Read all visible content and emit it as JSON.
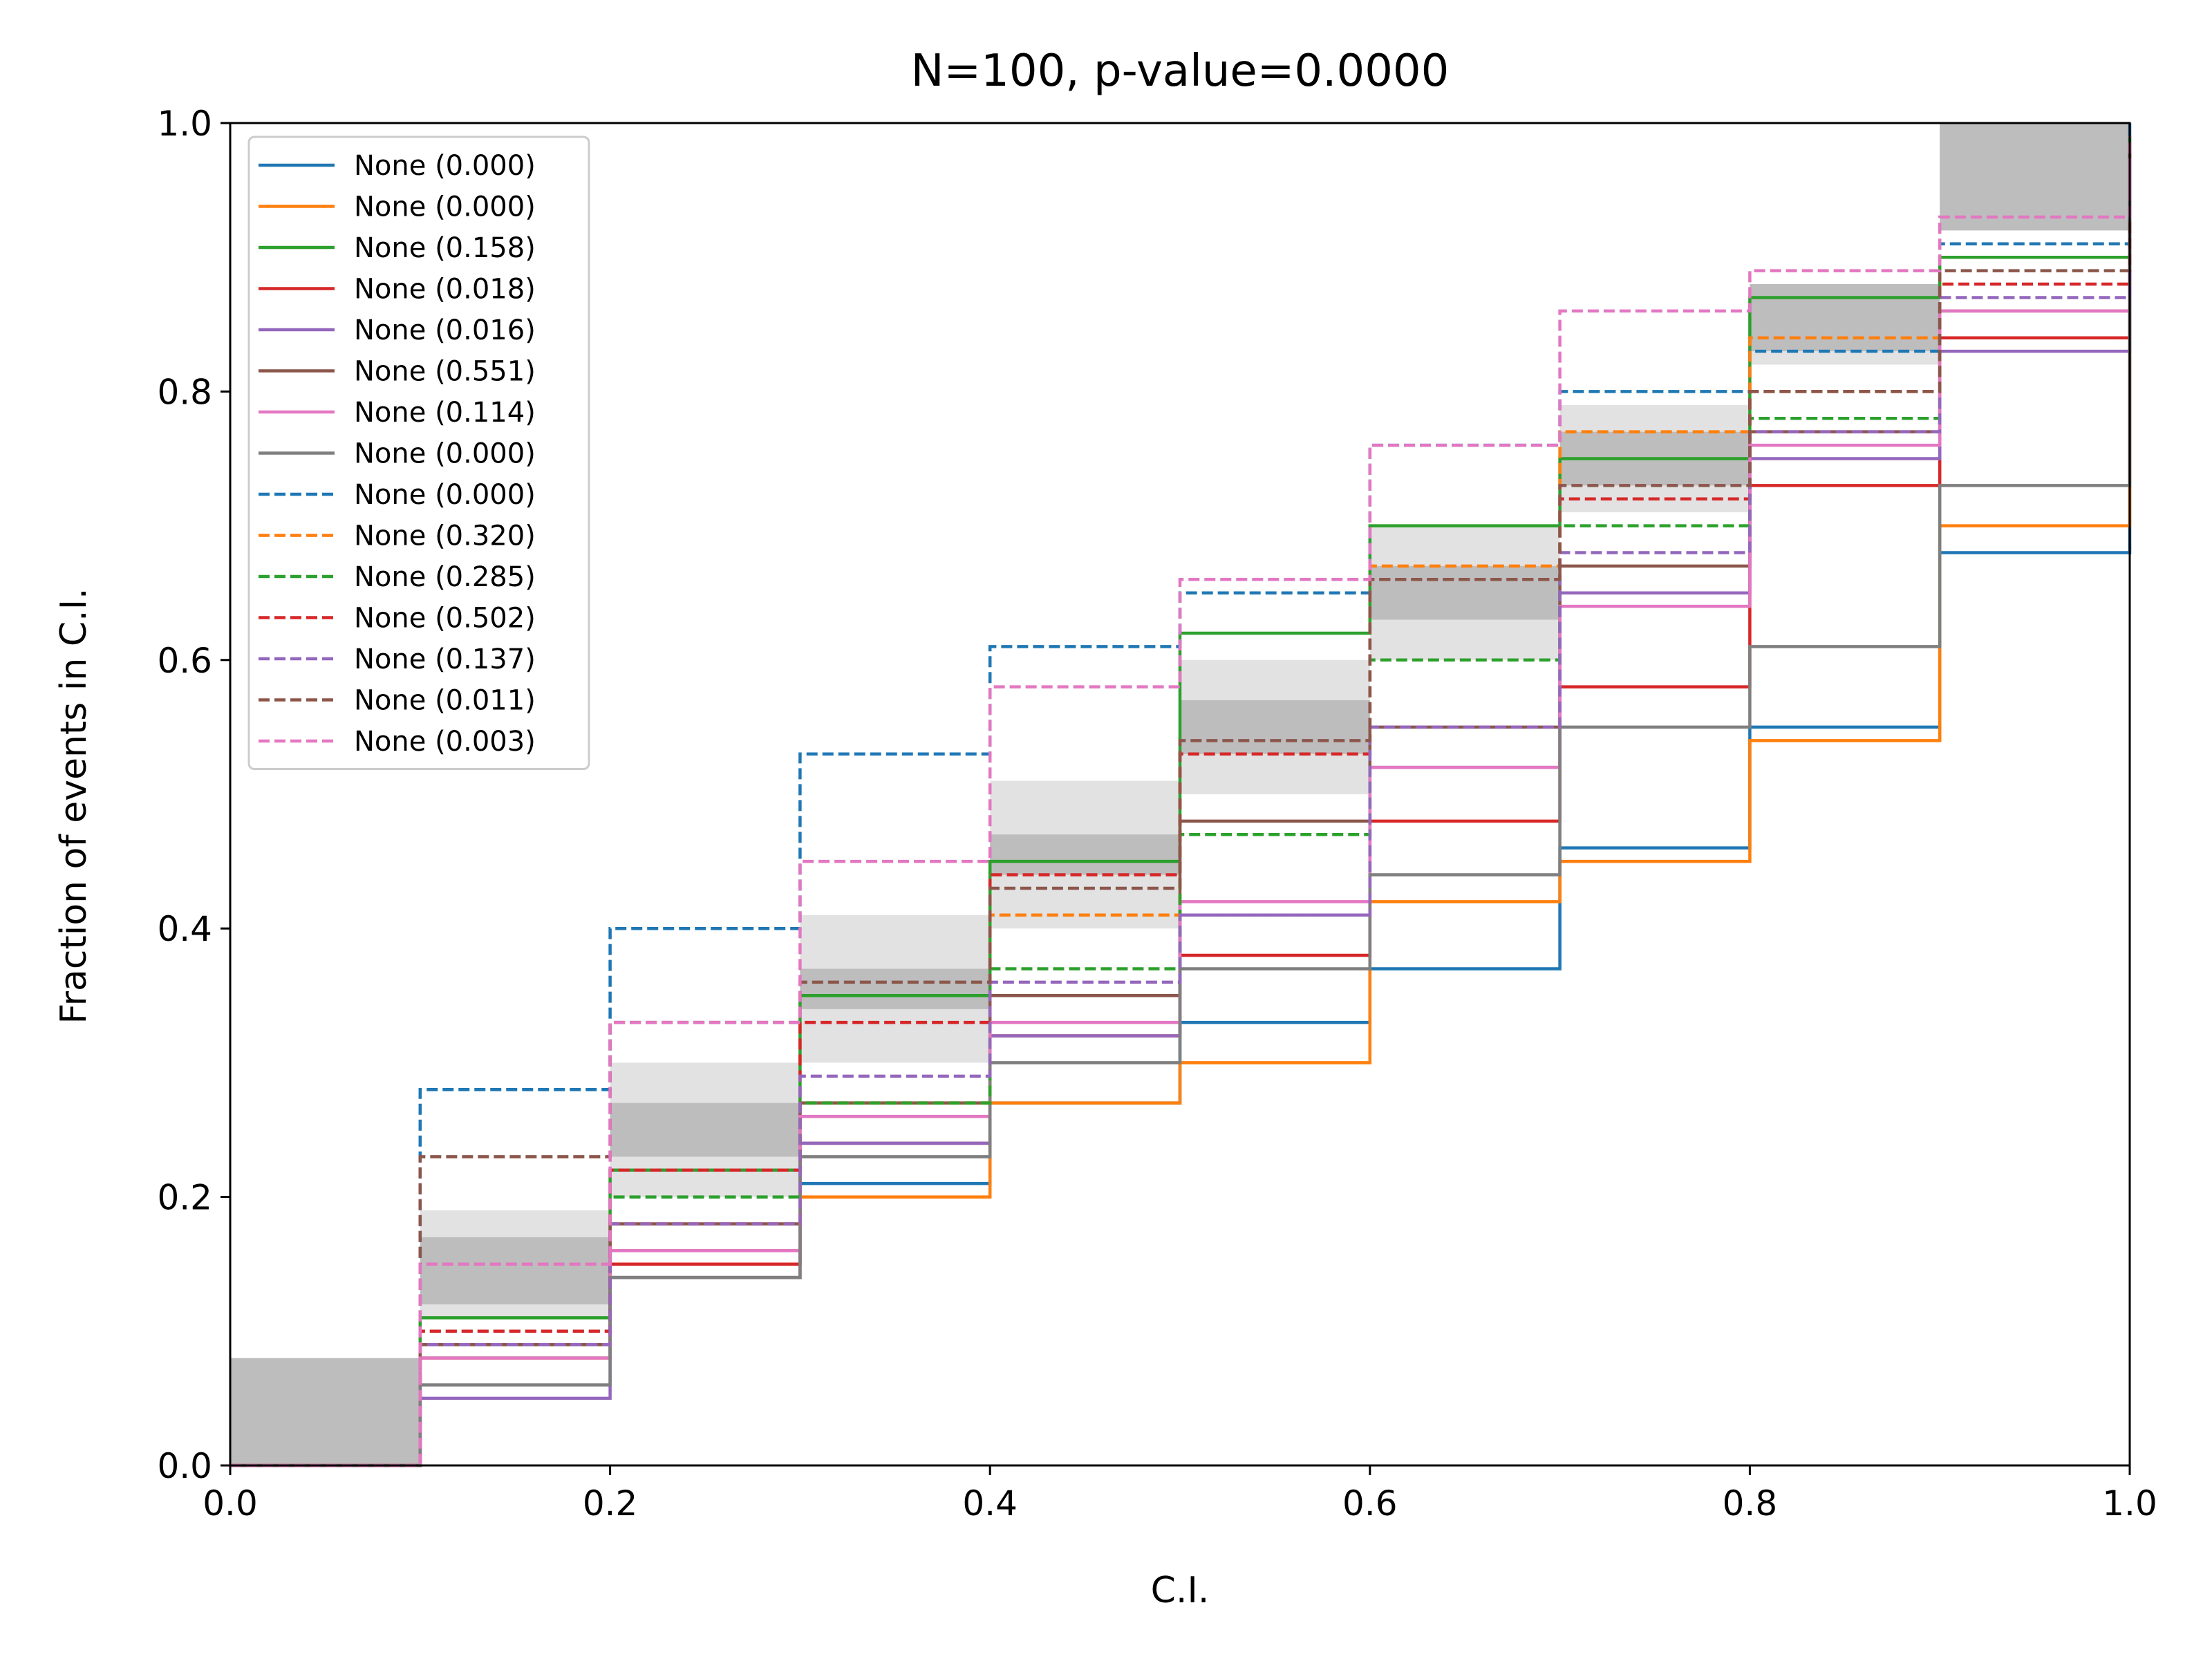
{
  "chart_data": {
    "type": "line",
    "title": "N=100, p-value=0.0000",
    "xlabel": "C.I.",
    "ylabel": "Fraction of events in C.I.",
    "xlim": [
      0,
      1
    ],
    "ylim": [
      0,
      1
    ],
    "x_ticks": [
      "0.0",
      "0.2",
      "0.4",
      "0.6",
      "0.8",
      "1.0"
    ],
    "y_ticks": [
      "0.0",
      "0.2",
      "0.4",
      "0.6",
      "0.8",
      "1.0"
    ],
    "grid": false,
    "legend_position": "upper-left",
    "bands": [
      {
        "label_printed": false,
        "x": [
          0,
          0.1,
          0.2,
          0.3,
          0.4,
          0.5,
          0.6,
          0.7,
          0.8,
          0.9,
          1.0
        ],
        "lower": [
          0,
          0.03,
          0.11,
          0.2,
          0.3,
          0.4,
          0.5,
          0.6,
          0.71,
          0.82,
          1.0
        ],
        "upper": [
          0,
          0.19,
          0.3,
          0.41,
          0.51,
          0.6,
          0.7,
          0.79,
          0.88,
          0.96,
          1.0
        ],
        "color": "#e2e2e2"
      },
      {
        "label_printed": false,
        "x": [
          0,
          0.1,
          0.2,
          0.3,
          0.4,
          0.5,
          0.6,
          0.7,
          0.8,
          0.9,
          1.0
        ],
        "lower": [
          0,
          0.06,
          0.14,
          0.24,
          0.34,
          0.44,
          0.54,
          0.64,
          0.75,
          0.86,
          1.0
        ],
        "upper": [
          0,
          0.15,
          0.26,
          0.37,
          0.47,
          0.56,
          0.66,
          0.76,
          0.85,
          0.94,
          1.0
        ],
        "color": "#d0d0d0"
      },
      {
        "label_printed": false,
        "x": [
          0,
          0.1,
          0.2,
          0.3,
          0.4,
          0.5,
          0.6,
          0.7,
          0.8,
          0.9,
          1.0
        ],
        "lower": [
          0,
          0.08,
          0.17,
          0.27,
          0.37,
          0.47,
          0.57,
          0.67,
          0.77,
          0.88,
          1.0
        ],
        "upper": [
          0,
          0.12,
          0.23,
          0.34,
          0.44,
          0.53,
          0.63,
          0.73,
          0.83,
          0.92,
          1.0
        ],
        "color": "#bdbdbd"
      }
    ],
    "series": [
      {
        "name": "None (0.000)",
        "color": "#1f77b4",
        "dash": "solid",
        "x": [
          0,
          0.1,
          0.2,
          0.3,
          0.4,
          0.5,
          0.6,
          0.7,
          0.8,
          0.9,
          1.0
        ],
        "y": [
          0,
          0.08,
          0.15,
          0.21,
          0.27,
          0.33,
          0.37,
          0.46,
          0.55,
          0.68,
          1.0
        ]
      },
      {
        "name": "None (0.000)",
        "color": "#ff7f0e",
        "dash": "solid",
        "x": [
          0,
          0.1,
          0.2,
          0.3,
          0.4,
          0.5,
          0.6,
          0.7,
          0.8,
          0.9,
          1.0
        ],
        "y": [
          0,
          0.08,
          0.14,
          0.2,
          0.27,
          0.3,
          0.42,
          0.45,
          0.54,
          0.7,
          0.93
        ]
      },
      {
        "name": "None (0.158)",
        "color": "#2ca02c",
        "dash": "solid",
        "x": [
          0,
          0.1,
          0.2,
          0.3,
          0.4,
          0.5,
          0.6,
          0.7,
          0.8,
          0.9,
          1.0
        ],
        "y": [
          0,
          0.11,
          0.22,
          0.35,
          0.45,
          0.62,
          0.7,
          0.75,
          0.87,
          0.9,
          0.99
        ]
      },
      {
        "name": "None (0.018)",
        "color": "#d62728",
        "dash": "solid",
        "x": [
          0,
          0.1,
          0.2,
          0.3,
          0.4,
          0.5,
          0.6,
          0.7,
          0.8,
          0.9,
          1.0
        ],
        "y": [
          0,
          0.09,
          0.15,
          0.24,
          0.32,
          0.38,
          0.48,
          0.58,
          0.73,
          0.84,
          0.98
        ]
      },
      {
        "name": "None (0.016)",
        "color": "#9467bd",
        "dash": "solid",
        "x": [
          0,
          0.1,
          0.2,
          0.3,
          0.4,
          0.5,
          0.6,
          0.7,
          0.8,
          0.9,
          1.0
        ],
        "y": [
          0,
          0.05,
          0.14,
          0.24,
          0.32,
          0.41,
          0.52,
          0.65,
          0.75,
          0.83,
          0.97
        ]
      },
      {
        "name": "None (0.551)",
        "color": "#8c564b",
        "dash": "solid",
        "x": [
          0,
          0.1,
          0.2,
          0.3,
          0.4,
          0.5,
          0.6,
          0.7,
          0.8,
          0.9,
          1.0
        ],
        "y": [
          0,
          0.09,
          0.18,
          0.27,
          0.35,
          0.48,
          0.55,
          0.67,
          0.77,
          0.86,
          0.98
        ]
      },
      {
        "name": "None (0.114)",
        "color": "#e377c2",
        "dash": "solid",
        "x": [
          0,
          0.1,
          0.2,
          0.3,
          0.4,
          0.5,
          0.6,
          0.7,
          0.8,
          0.9,
          1.0
        ],
        "y": [
          0,
          0.08,
          0.16,
          0.26,
          0.33,
          0.42,
          0.52,
          0.64,
          0.76,
          0.86,
          0.97
        ]
      },
      {
        "name": "None (0.000)",
        "color": "#7f7f7f",
        "dash": "solid",
        "x": [
          0,
          0.1,
          0.2,
          0.3,
          0.4,
          0.5,
          0.6,
          0.7,
          0.8,
          0.9,
          1.0
        ],
        "y": [
          0,
          0.06,
          0.14,
          0.23,
          0.3,
          0.37,
          0.44,
          0.55,
          0.61,
          0.73,
          0.95
        ]
      },
      {
        "name": "None (0.000)",
        "color": "#1f77b4",
        "dash": "dashed",
        "x": [
          0,
          0.1,
          0.2,
          0.3,
          0.4,
          0.5,
          0.6,
          0.7,
          0.8,
          0.9,
          1.0
        ],
        "y": [
          0,
          0.28,
          0.4,
          0.53,
          0.61,
          0.65,
          0.76,
          0.8,
          0.83,
          0.91,
          0.99
        ]
      },
      {
        "name": "None (0.320)",
        "color": "#ff7f0e",
        "dash": "dashed",
        "x": [
          0,
          0.1,
          0.2,
          0.3,
          0.4,
          0.5,
          0.6,
          0.7,
          0.8,
          0.9,
          1.0
        ],
        "y": [
          0,
          0.09,
          0.18,
          0.27,
          0.41,
          0.53,
          0.67,
          0.77,
          0.84,
          0.9,
          0.99
        ]
      },
      {
        "name": "None (0.285)",
        "color": "#2ca02c",
        "dash": "dashed",
        "x": [
          0,
          0.1,
          0.2,
          0.3,
          0.4,
          0.5,
          0.6,
          0.7,
          0.8,
          0.9,
          1.0
        ],
        "y": [
          0,
          0.1,
          0.2,
          0.27,
          0.37,
          0.47,
          0.6,
          0.7,
          0.78,
          0.9,
          0.97
        ]
      },
      {
        "name": "None (0.502)",
        "color": "#d62728",
        "dash": "dashed",
        "x": [
          0,
          0.1,
          0.2,
          0.3,
          0.4,
          0.5,
          0.6,
          0.7,
          0.8,
          0.9,
          1.0
        ],
        "y": [
          0,
          0.1,
          0.22,
          0.33,
          0.44,
          0.53,
          0.66,
          0.72,
          0.8,
          0.88,
          0.99
        ]
      },
      {
        "name": "None (0.137)",
        "color": "#9467bd",
        "dash": "dashed",
        "x": [
          0,
          0.1,
          0.2,
          0.3,
          0.4,
          0.5,
          0.6,
          0.7,
          0.8,
          0.9,
          1.0
        ],
        "y": [
          0,
          0.09,
          0.18,
          0.29,
          0.36,
          0.41,
          0.55,
          0.68,
          0.77,
          0.87,
          0.98
        ]
      },
      {
        "name": "None (0.011)",
        "color": "#8c564b",
        "dash": "dashed",
        "x": [
          0,
          0.1,
          0.2,
          0.3,
          0.4,
          0.5,
          0.6,
          0.7,
          0.8,
          0.9,
          1.0
        ],
        "y": [
          0,
          0.23,
          0.33,
          0.36,
          0.43,
          0.54,
          0.66,
          0.73,
          0.8,
          0.89,
          0.99
        ]
      },
      {
        "name": "None (0.003)",
        "color": "#e377c2",
        "dash": "dashed",
        "x": [
          0,
          0.1,
          0.2,
          0.3,
          0.4,
          0.5,
          0.6,
          0.7,
          0.8,
          0.9,
          1.0
        ],
        "y": [
          0,
          0.15,
          0.33,
          0.45,
          0.58,
          0.66,
          0.76,
          0.86,
          0.89,
          0.93,
          0.99
        ]
      }
    ]
  }
}
